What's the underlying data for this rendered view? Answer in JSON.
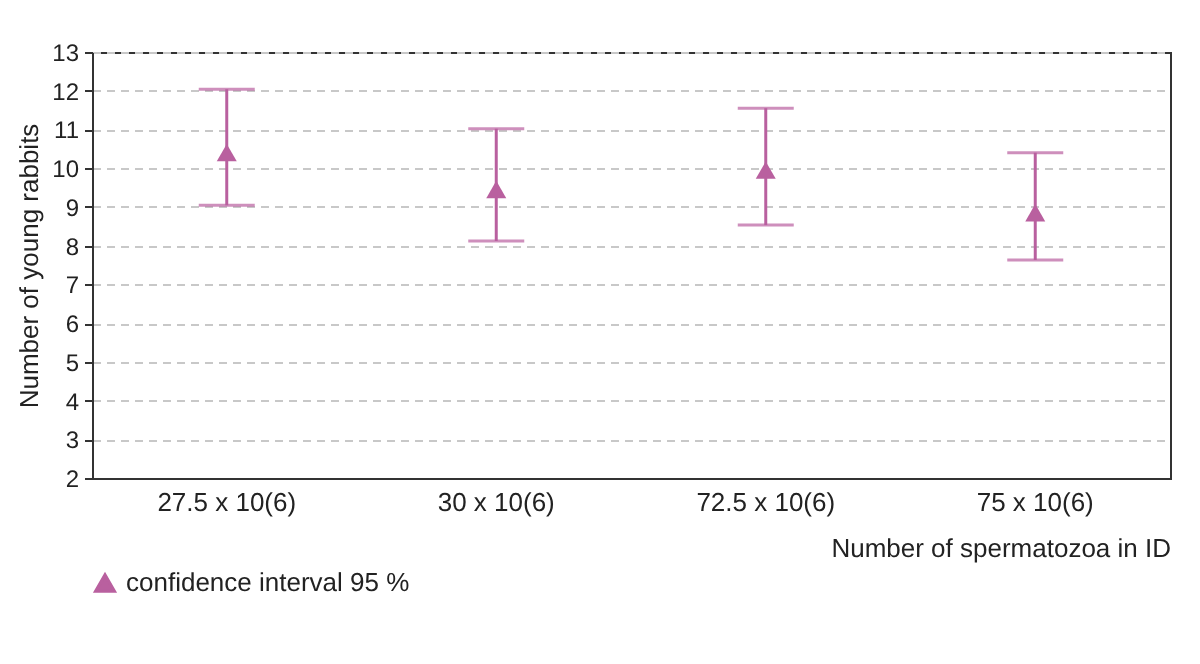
{
  "chart_data": {
    "type": "scatter",
    "xlabel": "Number of spermatozoa in ID",
    "ylabel": "Number of young rabbits",
    "categories": [
      "27.5 x 10(6)",
      "30 x 10(6)",
      "72.5 x 10(6)",
      "75 x 10(6)"
    ],
    "series": [
      {
        "name": "confidence interval 95 %",
        "color": "#b9609f",
        "values": [
          10.4,
          9.45,
          9.95,
          8.85
        ],
        "errors": [
          [
            9.04,
            12.04
          ],
          [
            8.12,
            11.02
          ],
          [
            8.53,
            11.55
          ],
          [
            7.63,
            10.4
          ]
        ]
      }
    ],
    "ylim": [
      2,
      13
    ],
    "yticks": [
      2,
      3,
      4,
      5,
      6,
      7,
      8,
      9,
      10,
      11,
      12,
      13
    ],
    "grid": "y",
    "legend": "bottom",
    "marker": "triangle"
  }
}
